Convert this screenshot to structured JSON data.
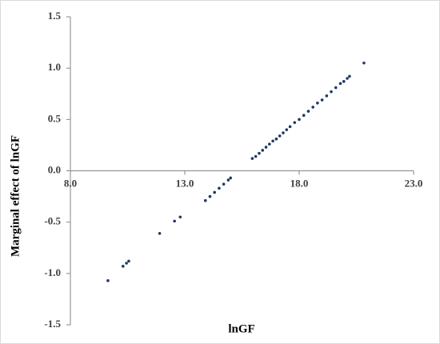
{
  "chart_data": {
    "type": "scatter",
    "x_label": "lnGF",
    "y_label": "Marginal effect of lnGF",
    "color": "#1f3864",
    "xlim": [
      8,
      23
    ],
    "xticks": [
      {
        "value": 8,
        "label": "8.0"
      },
      {
        "value": 13,
        "label": "13.0"
      },
      {
        "value": 18,
        "label": "18.0"
      },
      {
        "value": 23,
        "label": "23.0"
      }
    ],
    "ylim": [
      -1.5,
      1.5
    ],
    "yticks": [
      -1.5,
      {
        "value": -1,
        "label": "-1.0"
      },
      -0.5,
      {
        "value": 0,
        "label": "0.0"
      },
      0.5,
      {
        "value": 1,
        "label": "1.0"
      },
      1.5
    ],
    "x": [
      9.64,
      10.3,
      10.45,
      10.55,
      11.9,
      12.55,
      12.8,
      13.9,
      14.1,
      14.3,
      14.5,
      14.7,
      14.9,
      15.0,
      15.95,
      16.1,
      16.25,
      16.4,
      16.55,
      16.7,
      16.85,
      17.0,
      17.15,
      17.3,
      17.45,
      17.6,
      17.8,
      18.0,
      18.2,
      18.4,
      18.6,
      18.8,
      19.0,
      19.2,
      19.4,
      19.6,
      19.8,
      19.95,
      20.1,
      20.2,
      20.83
    ],
    "values": [
      -1.07,
      -0.93,
      -0.9,
      -0.88,
      -0.61,
      -0.49,
      -0.45,
      -0.29,
      -0.25,
      -0.21,
      -0.17,
      -0.13,
      -0.09,
      -0.07,
      0.12,
      0.14,
      0.17,
      0.2,
      0.23,
      0.26,
      0.29,
      0.31,
      0.34,
      0.37,
      0.4,
      0.43,
      0.47,
      0.5,
      0.54,
      0.58,
      0.62,
      0.66,
      0.69,
      0.73,
      0.77,
      0.81,
      0.85,
      0.87,
      0.9,
      0.92,
      1.05
    ]
  }
}
